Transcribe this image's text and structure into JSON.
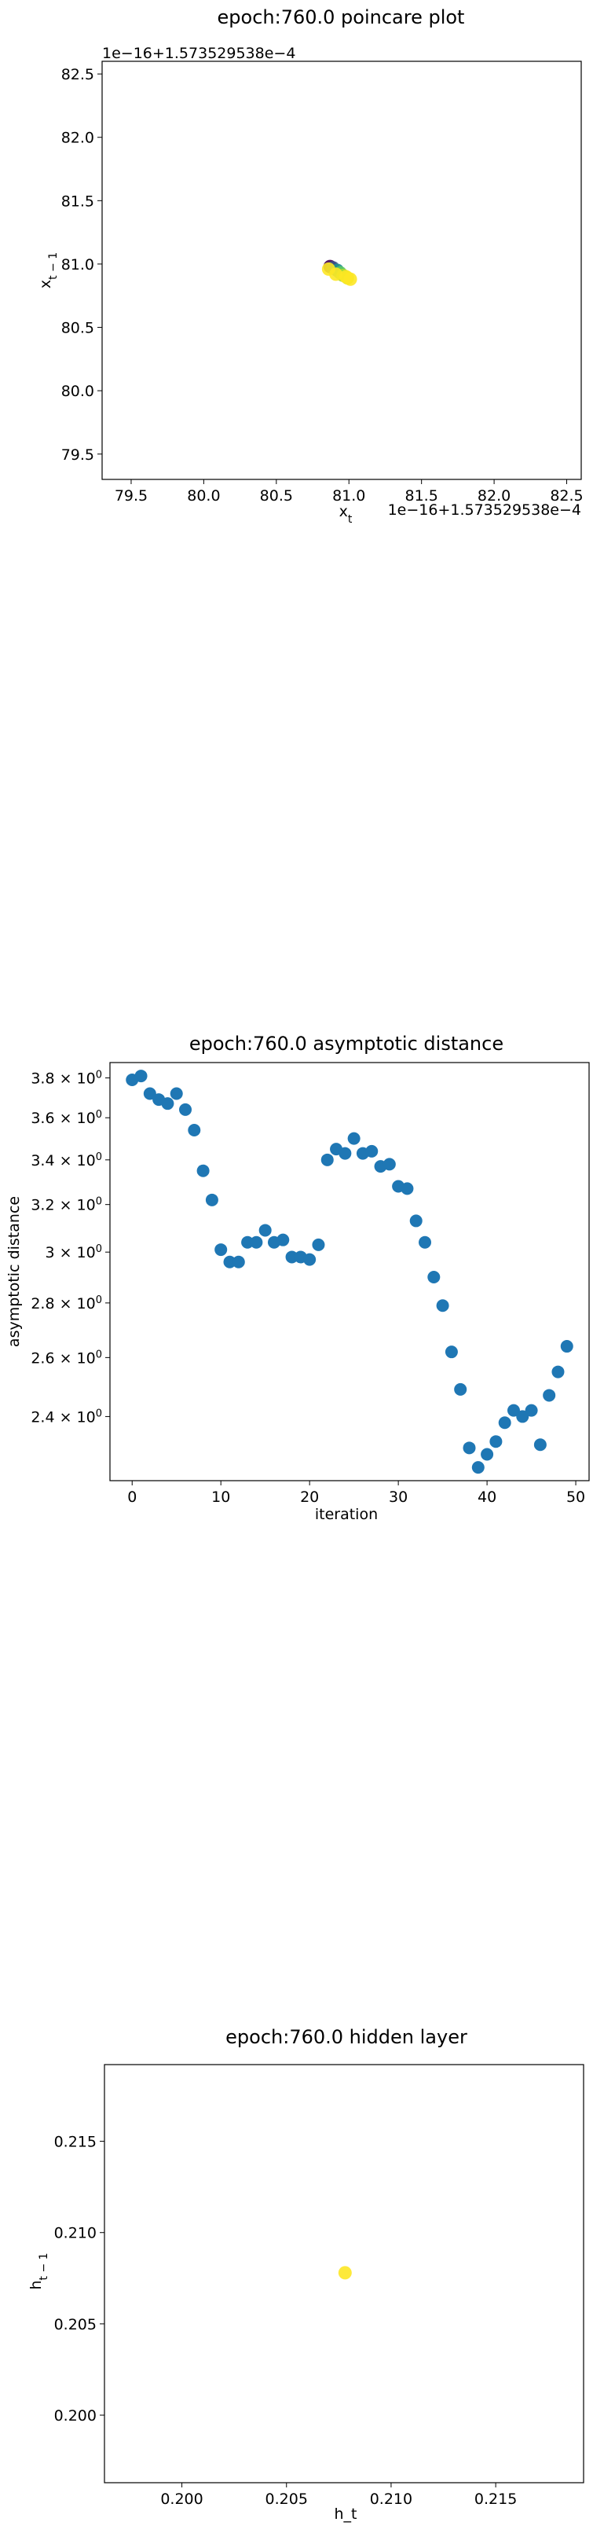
{
  "chart_data": [
    {
      "type": "scatter",
      "title": "epoch:760.0 poincare plot",
      "xlabel": "x_t",
      "ylabel": "x_{t-1}",
      "x_offset_label": "1e−16+1.573529538e−4",
      "y_offset_label": "1e−16+1.573529538e−4",
      "xlim": [
        79.3,
        82.6
      ],
      "ylim": [
        79.3,
        82.6
      ],
      "xticks": [
        79.5,
        80.0,
        80.5,
        81.0,
        81.5,
        82.0,
        82.5
      ],
      "yticks": [
        79.5,
        80.0,
        80.5,
        81.0,
        81.5,
        82.0,
        82.5
      ],
      "xtick_labels": [
        "79.5",
        "80.0",
        "80.5",
        "81.0",
        "81.5",
        "82.0",
        "82.5"
      ],
      "ytick_labels": [
        "79.5",
        "80.0",
        "80.5",
        "81.0",
        "81.5",
        "82.0",
        "82.5"
      ],
      "points": [
        {
          "x": 80.87,
          "y": 80.98,
          "color": "#440154"
        },
        {
          "x": 80.89,
          "y": 80.97,
          "color": "#3b528b"
        },
        {
          "x": 80.92,
          "y": 80.95,
          "color": "#21918c"
        },
        {
          "x": 80.94,
          "y": 80.93,
          "color": "#5ec962"
        },
        {
          "x": 80.96,
          "y": 80.91,
          "color": "#aadc32"
        },
        {
          "x": 80.99,
          "y": 80.89,
          "color": "#dde318"
        },
        {
          "x": 81.01,
          "y": 80.88,
          "color": "#fde725"
        },
        {
          "x": 80.86,
          "y": 80.96,
          "color": "#fde725"
        },
        {
          "x": 80.91,
          "y": 80.92,
          "color": "#fde725"
        },
        {
          "x": 80.98,
          "y": 80.9,
          "color": "#fde725"
        }
      ],
      "grid": false
    },
    {
      "type": "scatter",
      "title": "epoch:760.0 asymptotic distance",
      "xlabel": "iteration",
      "ylabel": "asymptotic distance",
      "yscale": "log",
      "xlim": [
        -2.5,
        51.5
      ],
      "ylim": [
        2.2,
        3.88
      ],
      "xticks": [
        0,
        10,
        20,
        30,
        40,
        50
      ],
      "xtick_labels": [
        "0",
        "10",
        "20",
        "30",
        "40",
        "50"
      ],
      "yticks": [
        2.4,
        2.6,
        2.8,
        3.0,
        3.2,
        3.4,
        3.6,
        3.8
      ],
      "ytick_labels": [
        {
          "base": "2.4 × 10",
          "exp": "0"
        },
        {
          "base": "2.6 × 10",
          "exp": "0"
        },
        {
          "base": "2.8 × 10",
          "exp": "0"
        },
        {
          "base": "3 × 10",
          "exp": "0"
        },
        {
          "base": "3.2 × 10",
          "exp": "0"
        },
        {
          "base": "3.4 × 10",
          "exp": "0"
        },
        {
          "base": "3.6 × 10",
          "exp": "0"
        },
        {
          "base": "3.8 × 10",
          "exp": "0"
        }
      ],
      "x": [
        0,
        1,
        2,
        3,
        4,
        5,
        6,
        7,
        8,
        9,
        10,
        11,
        12,
        13,
        14,
        15,
        16,
        17,
        18,
        19,
        20,
        21,
        22,
        23,
        24,
        25,
        26,
        27,
        28,
        29,
        30,
        31,
        32,
        33,
        34,
        35,
        36,
        37,
        38,
        39,
        40,
        41,
        42,
        43,
        44,
        45,
        46,
        47,
        48,
        49
      ],
      "y": [
        3.79,
        3.81,
        3.72,
        3.69,
        3.67,
        3.72,
        3.64,
        3.54,
        3.35,
        3.22,
        3.01,
        2.96,
        2.96,
        3.04,
        3.04,
        3.09,
        3.04,
        3.05,
        2.98,
        2.98,
        2.97,
        3.03,
        3.4,
        3.45,
        3.43,
        3.5,
        3.43,
        3.44,
        3.37,
        3.38,
        3.28,
        3.27,
        3.13,
        3.04,
        2.9,
        2.79,
        2.62,
        2.49,
        2.3,
        2.24,
        2.28,
        2.32,
        2.38,
        2.42,
        2.4,
        2.42,
        2.31,
        2.47,
        2.55,
        2.64
      ],
      "color": "#1f77b4",
      "grid": false
    },
    {
      "type": "scatter",
      "title": "epoch:760.0 hidden layer",
      "xlabel": "h_t",
      "ylabel": "h_{t-1}",
      "xlim": [
        0.1963,
        0.2192
      ],
      "ylim": [
        0.1963,
        0.2192
      ],
      "xticks": [
        0.2,
        0.205,
        0.21,
        0.215
      ],
      "yticks": [
        0.2,
        0.205,
        0.21,
        0.215
      ],
      "xtick_labels": [
        "0.200",
        "0.205",
        "0.210",
        "0.215"
      ],
      "ytick_labels": [
        "0.200",
        "0.205",
        "0.210",
        "0.215"
      ],
      "points": [
        {
          "x": 0.2078,
          "y": 0.2078,
          "color": "#fde725"
        }
      ],
      "grid": false
    }
  ]
}
